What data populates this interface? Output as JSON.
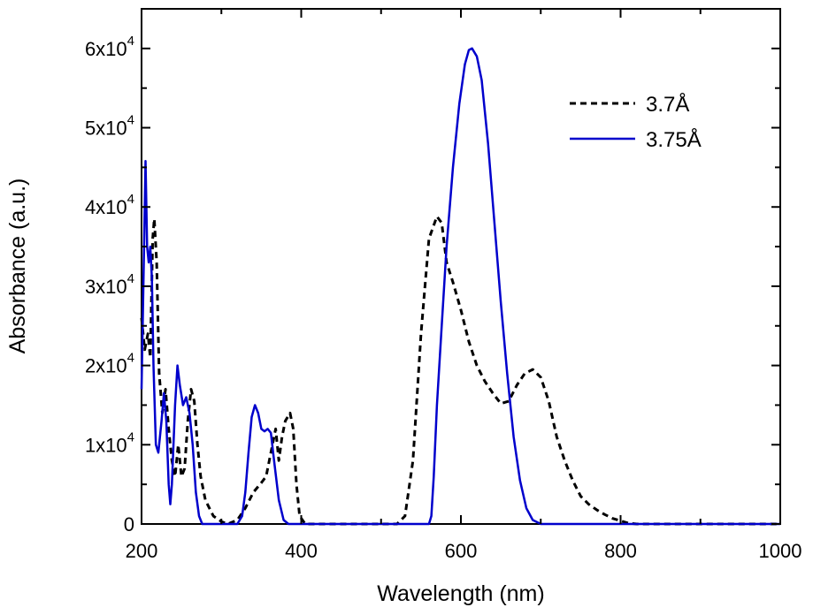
{
  "chart_data": {
    "type": "line",
    "title": "",
    "xlabel": "Wavelength (nm)",
    "ylabel": "Absorbance (a.u.)",
    "xlim": [
      200,
      1000
    ],
    "ylim": [
      0,
      65000
    ],
    "grid": false,
    "legend_position": "top-right",
    "x_ticks": [
      {
        "value": 200,
        "label": "200"
      },
      {
        "value": 400,
        "label": "400"
      },
      {
        "value": 600,
        "label": "600"
      },
      {
        "value": 800,
        "label": "800"
      },
      {
        "value": 1000,
        "label": "1000"
      }
    ],
    "y_ticks": [
      {
        "value": 0,
        "mantissa": "0",
        "exp": ""
      },
      {
        "value": 10000,
        "mantissa": "1x10",
        "exp": "4"
      },
      {
        "value": 20000,
        "mantissa": "2x10",
        "exp": "4"
      },
      {
        "value": 30000,
        "mantissa": "3x10",
        "exp": "4"
      },
      {
        "value": 40000,
        "mantissa": "4x10",
        "exp": "4"
      },
      {
        "value": 50000,
        "mantissa": "5x10",
        "exp": "4"
      },
      {
        "value": 60000,
        "mantissa": "6x10",
        "exp": "4"
      }
    ],
    "series": [
      {
        "name": "3.7Å",
        "color": "#000000",
        "dash": "dashed",
        "points": [
          [
            200,
            26000
          ],
          [
            204,
            22000
          ],
          [
            208,
            24000
          ],
          [
            211,
            21000
          ],
          [
            214,
            36000
          ],
          [
            216,
            38500
          ],
          [
            219,
            33000
          ],
          [
            222,
            19000
          ],
          [
            226,
            14000
          ],
          [
            230,
            17000
          ],
          [
            234,
            12000
          ],
          [
            238,
            8000
          ],
          [
            242,
            6000
          ],
          [
            246,
            10000
          ],
          [
            250,
            6000
          ],
          [
            254,
            7000
          ],
          [
            258,
            13000
          ],
          [
            262,
            17000
          ],
          [
            266,
            15500
          ],
          [
            270,
            10000
          ],
          [
            274,
            6000
          ],
          [
            280,
            3000
          ],
          [
            290,
            1000
          ],
          [
            300,
            300
          ],
          [
            308,
            0
          ],
          [
            320,
            500
          ],
          [
            330,
            2000
          ],
          [
            340,
            4000
          ],
          [
            350,
            5200
          ],
          [
            356,
            6000
          ],
          [
            362,
            9000
          ],
          [
            368,
            12000
          ],
          [
            372,
            8000
          ],
          [
            376,
            11000
          ],
          [
            380,
            13000
          ],
          [
            386,
            14000
          ],
          [
            390,
            12000
          ],
          [
            394,
            5000
          ],
          [
            398,
            1000
          ],
          [
            405,
            0
          ],
          [
            500,
            0
          ],
          [
            520,
            0
          ],
          [
            530,
            1000
          ],
          [
            540,
            8000
          ],
          [
            550,
            24000
          ],
          [
            560,
            36000
          ],
          [
            570,
            38800
          ],
          [
            576,
            38000
          ],
          [
            582,
            33000
          ],
          [
            590,
            30500
          ],
          [
            600,
            27000
          ],
          [
            610,
            23000
          ],
          [
            620,
            20000
          ],
          [
            630,
            18000
          ],
          [
            640,
            16500
          ],
          [
            650,
            15200
          ],
          [
            660,
            15500
          ],
          [
            670,
            17500
          ],
          [
            680,
            19000
          ],
          [
            690,
            19500
          ],
          [
            700,
            18500
          ],
          [
            710,
            15500
          ],
          [
            720,
            11000
          ],
          [
            730,
            8000
          ],
          [
            740,
            5500
          ],
          [
            750,
            3500
          ],
          [
            760,
            2500
          ],
          [
            770,
            1800
          ],
          [
            780,
            1200
          ],
          [
            790,
            700
          ],
          [
            800,
            400
          ],
          [
            810,
            100
          ],
          [
            820,
            0
          ],
          [
            1000,
            0
          ]
        ]
      },
      {
        "name": "3.75Å",
        "color": "#0000cc",
        "dash": "solid",
        "points": [
          [
            200,
            17000
          ],
          [
            203,
            34000
          ],
          [
            205,
            45800
          ],
          [
            207,
            35000
          ],
          [
            209,
            33000
          ],
          [
            211,
            35000
          ],
          [
            213,
            31000
          ],
          [
            215,
            20000
          ],
          [
            218,
            10000
          ],
          [
            221,
            9000
          ],
          [
            225,
            13000
          ],
          [
            228,
            16500
          ],
          [
            231,
            13000
          ],
          [
            234,
            5000
          ],
          [
            236,
            2500
          ],
          [
            238,
            5000
          ],
          [
            242,
            15000
          ],
          [
            245,
            20000
          ],
          [
            248,
            17500
          ],
          [
            252,
            15000
          ],
          [
            256,
            16000
          ],
          [
            260,
            14000
          ],
          [
            264,
            10000
          ],
          [
            268,
            4000
          ],
          [
            272,
            1000
          ],
          [
            276,
            0
          ],
          [
            300,
            0
          ],
          [
            320,
            0
          ],
          [
            326,
            1000
          ],
          [
            330,
            4000
          ],
          [
            334,
            9000
          ],
          [
            338,
            13500
          ],
          [
            342,
            15000
          ],
          [
            346,
            14000
          ],
          [
            350,
            12000
          ],
          [
            354,
            11700
          ],
          [
            358,
            12000
          ],
          [
            362,
            11500
          ],
          [
            366,
            8000
          ],
          [
            372,
            3000
          ],
          [
            378,
            500
          ],
          [
            384,
            0
          ],
          [
            560,
            0
          ],
          [
            563,
            1000
          ],
          [
            566,
            6000
          ],
          [
            570,
            15000
          ],
          [
            576,
            25000
          ],
          [
            582,
            35000
          ],
          [
            590,
            45000
          ],
          [
            598,
            53000
          ],
          [
            605,
            58000
          ],
          [
            610,
            59800
          ],
          [
            614,
            60000
          ],
          [
            620,
            59000
          ],
          [
            626,
            56000
          ],
          [
            634,
            48000
          ],
          [
            642,
            38000
          ],
          [
            650,
            28000
          ],
          [
            658,
            19000
          ],
          [
            666,
            11000
          ],
          [
            674,
            5500
          ],
          [
            682,
            2000
          ],
          [
            690,
            500
          ],
          [
            700,
            0
          ],
          [
            1000,
            0
          ]
        ]
      }
    ]
  }
}
